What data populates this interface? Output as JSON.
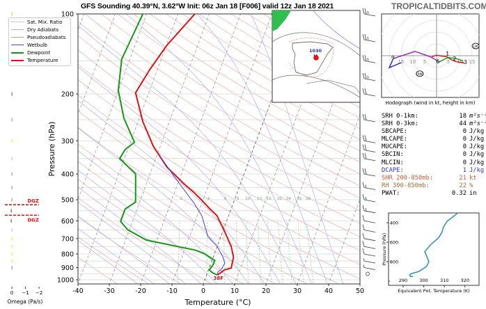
{
  "header": {
    "title": "GFS Sounding 40.39°N, 3.62°W Init: 06z Jan 18 [F006] valid 12z Jan 18 2021",
    "site": "TROPICALTIDBITS.COM"
  },
  "legend": [
    {
      "label": "Sat. Mix. Ratio",
      "color": "#7fbf7f",
      "style": "dotted"
    },
    {
      "label": "Dry Adiabats",
      "color": "#e0a0a0",
      "style": "solid"
    },
    {
      "label": "Pseudoadiabats",
      "color": "#a0a0d8",
      "style": "solid"
    },
    {
      "label": "Wetbulb",
      "color": "#4040e0",
      "style": "solid"
    },
    {
      "label": "Dewpoint",
      "color": "#119911",
      "style": "solid"
    },
    {
      "label": "Temperature",
      "color": "#dd1111",
      "style": "solid"
    }
  ],
  "stats": [
    {
      "label": "SRH 0-1km:",
      "value": "18",
      "unit": "m²s⁻²",
      "color": "#000000"
    },
    {
      "label": "SRH 0-3km:",
      "value": "44",
      "unit": "m²s⁻²",
      "color": "#000000"
    },
    {
      "label": "SBCAPE:",
      "value": "0",
      "unit": "J/kg",
      "color": "#000000"
    },
    {
      "label": "MLCAPE:",
      "value": "0",
      "unit": "J/kg",
      "color": "#000000"
    },
    {
      "label": "MUCAPE:",
      "value": "0",
      "unit": "J/kg",
      "color": "#000000"
    },
    {
      "label": "SBCIN:",
      "value": "0",
      "unit": "J/kg",
      "color": "#000000"
    },
    {
      "label": "MLCIN:",
      "value": "0",
      "unit": "J/kg",
      "color": "#000000"
    },
    {
      "label": "DCAPE:",
      "value": "1",
      "unit": "J/kg",
      "color": "#3333cc"
    },
    {
      "label": "SHR 200-850mb:",
      "value": "21",
      "unit": "kt",
      "color": "#c0603a"
    },
    {
      "label": "RH 300-850mb:",
      "value": "22",
      "unit": "%",
      "color": "#a0703a"
    },
    {
      "label": "PWAT:",
      "value": "0.32",
      "unit": "in",
      "color": "#000000"
    }
  ],
  "map": {
    "pressure_label": "1030",
    "high_label": "H"
  },
  "chart_data": [
    {
      "type": "line",
      "name": "skew-t",
      "xlabel": "Temperature (°C)",
      "ylabel": "Pressure (hPa)",
      "xlim": [
        -40,
        50
      ],
      "ylim": [
        1050,
        100
      ],
      "xticks": [
        "-40",
        "-30",
        "-20",
        "-10",
        "0",
        "10",
        "20",
        "30",
        "40",
        "50"
      ],
      "yticks": [
        "100",
        "200",
        "300",
        "400",
        "500",
        "600",
        "700",
        "800",
        "900",
        "1000"
      ],
      "mixing_ratio_labels": [
        "2",
        "4",
        "6",
        "8",
        "10",
        "13",
        "16",
        "20",
        "24",
        "30",
        "36"
      ],
      "surface_temp_label": "38F",
      "series": [
        {
          "name": "Temperature",
          "color": "#dd1111",
          "p": [
            959,
            918,
            903,
            823,
            750,
            660,
            574,
            542,
            503,
            473,
            437,
            377,
            314,
            254,
            198,
            162,
            131,
            100
          ],
          "t": [
            3.5,
            5.1,
            7.0,
            6.5,
            4.5,
            0.7,
            -3.7,
            -6.7,
            -10.3,
            -13.4,
            -17.8,
            -25.4,
            -32.3,
            -38.5,
            -44.2,
            -42.4,
            -39.8,
            -34.6
          ]
        },
        {
          "name": "Dewpoint",
          "color": "#119911",
          "p": [
            959,
            941,
            918,
            883,
            846,
            797,
            773,
            750,
            709,
            648,
            603,
            542,
            510,
            400,
            350,
            323,
            304,
            247,
            194,
            148,
            100
          ],
          "t": [
            3.4,
            1.6,
            0.2,
            0.8,
            0.9,
            -3.3,
            -6.6,
            -12.6,
            -23.4,
            -30.6,
            -33.8,
            -33.8,
            -31.3,
            -34.6,
            -41.5,
            -40.8,
            -38.7,
            -44.9,
            -50,
            -52.6,
            -51.2
          ]
        },
        {
          "name": "Wetbulb",
          "color": "#4040e0",
          "p": [
            959,
            936,
            909,
            865,
            813,
            750,
            688,
            575,
            519,
            425,
            344
          ],
          "t": [
            3.5,
            3.2,
            4.1,
            4.4,
            2.8,
            0,
            -4.1,
            -8.5,
            -12.2,
            -20.4,
            -28.8
          ]
        }
      ]
    },
    {
      "type": "line",
      "name": "hodograph",
      "xlabel": "Hodograph (wind in kt, height in km)",
      "ring_labels": [
        "5",
        "10",
        "15"
      ],
      "right_ring_labels": [
        "5",
        "10",
        "15"
      ],
      "segments": [
        {
          "color": "#dd1111",
          "u": [
            -2.1,
            -0.1,
            4.4,
            5.9,
            7.8,
            11.8
          ],
          "v": [
            -0.5,
            0.2,
            -0.5,
            -1.5,
            -2.4,
            -3.1
          ]
        },
        {
          "color": "#119911",
          "u": [
            11.2,
            8.2,
            4.8,
            0.9
          ],
          "v": [
            -2.2,
            -1.2,
            -0.8,
            -2.7
          ]
        },
        {
          "color": "#9922bb",
          "u": [
            0.7,
            -2.6,
            -9.1,
            -18.2
          ],
          "v": [
            -2.4,
            -0.5,
            1.8,
            -1.2
          ]
        },
        {
          "color": "#2222dd",
          "u": [
            -18.5,
            -20,
            -14.8
          ],
          "v": [
            -1.8,
            -5.1,
            -2.9
          ]
        }
      ],
      "height_labels": [
        {
          "text": "1",
          "u": 4.6,
          "v": 0.3
        },
        {
          "text": "2",
          "u": 7.6,
          "v": -1.8
        },
        {
          "text": "3",
          "u": 12.2,
          "v": -3.2
        },
        {
          "text": "6",
          "u": 0.6,
          "v": -3.0
        },
        {
          "text": "9",
          "u": -18.4,
          "v": -1.4
        }
      ],
      "markers": [
        {
          "text": "RM",
          "u": -7.1,
          "v": -7.6
        },
        {
          "text": "LM",
          "u": 16.5,
          "v": 4.1
        }
      ]
    },
    {
      "type": "line",
      "name": "theta-e",
      "xlabel": "Equivalent Pot. Temperature (K)",
      "ylabel": "Pressure (hPa)",
      "xticks": [
        "290",
        "300",
        "310",
        "320"
      ],
      "yticks": [
        "400",
        "600",
        "800"
      ],
      "color": "#2a8fb0",
      "p": [
        305,
        352,
        388,
        448,
        495,
        555,
        626,
        698,
        800,
        848,
        900,
        924,
        936,
        952,
        952
      ],
      "theta_e": [
        316.2,
        313.4,
        311.2,
        309.5,
        308.9,
        307.2,
        303.3,
        300.5,
        302.5,
        301.4,
        297.7,
        293.7,
        293.2,
        293.5,
        294.8
      ]
    },
    {
      "type": "bar",
      "name": "omega",
      "xlabel": "Omega (Pa/s)",
      "xticks": [
        "0",
        "−1",
        "−2"
      ],
      "dgz_label": "DGZ",
      "dgz_top_hpa": 522,
      "dgz_bottom_hpa": 572,
      "p": [
        100,
        200,
        250,
        300,
        350,
        400,
        450,
        500,
        550,
        600,
        650,
        700,
        750,
        800,
        850,
        900
      ],
      "omega": [
        0,
        0,
        -0.02,
        0,
        0,
        0,
        0,
        0,
        0.05,
        0.05,
        0,
        0,
        0,
        0,
        0,
        0
      ],
      "colors": [
        "#dddd55",
        "#888888",
        "#aaaaaa",
        "#eeee44",
        "#cccccc",
        "#aaaaaa",
        "#aaaaaa",
        "#aaaaaa",
        "#777777",
        "#777777",
        "#cccccc",
        "#eeee44",
        "#eeee44",
        "#eeee44",
        "#eeee44",
        "#aaaaaa"
      ]
    }
  ],
  "wind_barbs": {
    "p": [
      100,
      125,
      150,
      175,
      200,
      250,
      300,
      325,
      350,
      400,
      450,
      500,
      550,
      600,
      650,
      700,
      750,
      800,
      850,
      900,
      950
    ],
    "speed_kt": [
      25,
      25,
      25,
      25,
      20,
      20,
      20,
      20,
      20,
      20,
      15,
      15,
      15,
      10,
      10,
      10,
      10,
      10,
      5,
      5,
      0
    ]
  }
}
